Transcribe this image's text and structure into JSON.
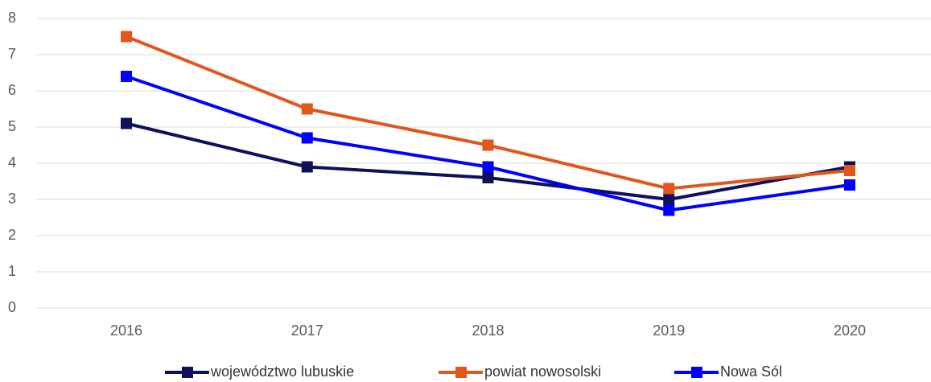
{
  "chart_data": {
    "type": "line",
    "categories": [
      "2016",
      "2017",
      "2018",
      "2019",
      "2020"
    ],
    "series": [
      {
        "name": "województwo lubuskie",
        "color": "#0f0f5c",
        "values": [
          5.1,
          3.9,
          3.6,
          3.0,
          3.9
        ]
      },
      {
        "name": "powiat nowosolski",
        "color": "#e0561d",
        "values": [
          7.5,
          5.5,
          4.5,
          3.3,
          3.8
        ]
      },
      {
        "name": "Nowa Sól",
        "color": "#0000ff",
        "values": [
          6.4,
          4.7,
          3.9,
          2.7,
          3.4
        ]
      }
    ],
    "ylim": [
      0,
      8
    ],
    "yticks": [
      0,
      1,
      2,
      3,
      4,
      5,
      6,
      7,
      8
    ],
    "grid": true,
    "legend": "bottom"
  }
}
